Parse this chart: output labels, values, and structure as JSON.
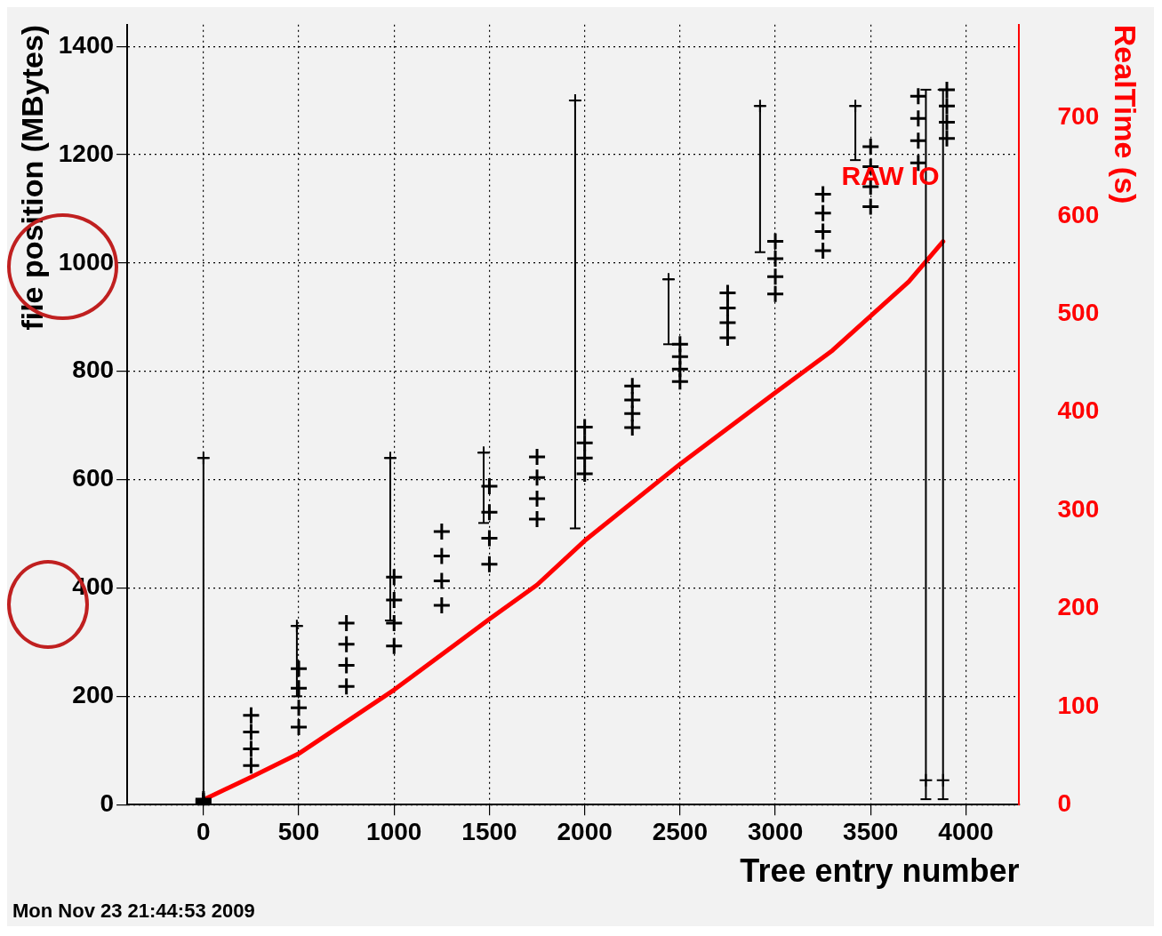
{
  "chart_data": {
    "type": "line",
    "xlabel": "Tree entry number",
    "ylabel": "file position (MBytes)",
    "y2label": "RealTime (s)",
    "xlim": [
      -400,
      4280
    ],
    "xticks": [
      0,
      500,
      1000,
      1500,
      2000,
      2500,
      3000,
      3500,
      4000
    ],
    "ylim": [
      0,
      1440
    ],
    "yticks": [
      0,
      200,
      400,
      600,
      800,
      1000,
      1200,
      1400
    ],
    "y2lim": [
      0,
      795
    ],
    "y2ticks": [
      0,
      100,
      200,
      300,
      400,
      500,
      600,
      700
    ],
    "grid": true,
    "legend": false,
    "series": [
      {
        "type": "scatter",
        "color": "#000000",
        "marker": "cross",
        "x": [
          0,
          250,
          500,
          750,
          1000,
          1250,
          1500,
          1750,
          2000,
          2250,
          2500,
          2750,
          3000,
          3250,
          3500,
          3750,
          3900,
          0,
          250,
          500,
          750,
          1000,
          1250,
          1500,
          1750,
          2000,
          2250,
          2500,
          2750,
          3000,
          3250,
          3500,
          3750,
          3900,
          0,
          250,
          500,
          750,
          1000,
          1250,
          1500,
          1750,
          2000,
          2250,
          2500,
          2750,
          3000,
          3250,
          3500,
          3750,
          3900,
          0,
          250,
          500,
          750,
          1000,
          1250,
          1500,
          1750,
          2000,
          2250,
          2500,
          2750,
          3000,
          3250,
          3500,
          3750,
          3900
        ],
        "values": [
          0,
          72,
          143,
          218,
          293,
          368,
          444,
          527,
          611,
          696,
          781,
          862,
          943,
          1023,
          1104,
          1185,
          1230,
          3,
          103,
          179,
          257,
          335,
          413,
          492,
          565,
          640,
          722,
          804,
          890,
          975,
          1058,
          1141,
          1226,
          1260,
          7,
          134,
          215,
          296,
          378,
          459,
          540,
          604,
          668,
          747,
          827,
          917,
          1008,
          1092,
          1178,
          1267,
          1290,
          10,
          165,
          251,
          335,
          420,
          504,
          588,
          642,
          697,
          773,
          850,
          945,
          1040,
          1127,
          1215,
          1308,
          1320
        ]
      },
      {
        "type": "scatter",
        "color": "#000000",
        "marker": "cross",
        "x": [
          0,
          490,
          980,
          1470,
          1950,
          2440,
          2920,
          3420,
          3790,
          3880
        ],
        "values": [
          640,
          330,
          640,
          650,
          1300,
          970,
          1290,
          1290,
          45,
          45
        ],
        "errors": [
          [
            0,
            640
          ],
          [
            200,
            330
          ],
          [
            340,
            640
          ],
          [
            520,
            650
          ],
          [
            510,
            1300
          ],
          [
            850,
            970
          ],
          [
            1020,
            1290
          ],
          [
            1190,
            1290
          ],
          [
            10,
            1320
          ],
          [
            10,
            1320
          ]
        ]
      },
      {
        "axis": "y2",
        "color": "#ff0000",
        "marker": "none",
        "x": [
          0,
          250,
          500,
          1000,
          1500,
          1750,
          2000,
          2500,
          3000,
          3300,
          3700,
          3880
        ],
        "values": [
          5,
          28,
          52,
          117,
          189,
          224,
          269,
          347,
          420,
          463,
          533,
          574
        ]
      }
    ],
    "annotations": [
      "RAW IO",
      "Mon Nov 23 21:44:53 2009"
    ]
  }
}
